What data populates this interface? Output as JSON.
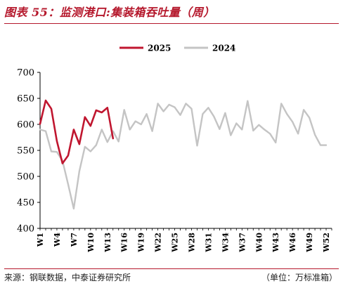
{
  "header": {
    "title": "图表 55：监测港口:集装箱吞吐量（周）"
  },
  "footer": {
    "source": "来源：钢联数据，中泰证券研究所",
    "unit": "（单位：万标准箱）"
  },
  "colors": {
    "accent": "#b5182c",
    "series_2025": "#c0162f",
    "series_2024": "#c4c4c4"
  },
  "chart_data": {
    "type": "line",
    "ylim": [
      400,
      700
    ],
    "yticks": [
      400,
      450,
      500,
      550,
      600,
      650,
      700
    ],
    "xlim": [
      1,
      53
    ],
    "xticks": [
      {
        "w": 1,
        "label": "W1"
      },
      {
        "w": 4,
        "label": "W4"
      },
      {
        "w": 7,
        "label": "W7"
      },
      {
        "w": 10,
        "label": "W10"
      },
      {
        "w": 13,
        "label": "W13"
      },
      {
        "w": 16,
        "label": "W16"
      },
      {
        "w": 19,
        "label": "W19"
      },
      {
        "w": 22,
        "label": "W22"
      },
      {
        "w": 25,
        "label": "W25"
      },
      {
        "w": 28,
        "label": "W28"
      },
      {
        "w": 31,
        "label": "W31"
      },
      {
        "w": 34,
        "label": "W34"
      },
      {
        "w": 37,
        "label": "W37"
      },
      {
        "w": 40,
        "label": "W40"
      },
      {
        "w": 43,
        "label": "W43"
      },
      {
        "w": 46,
        "label": "W46"
      },
      {
        "w": 49,
        "label": "W49"
      },
      {
        "w": 52,
        "label": "W52"
      }
    ],
    "legend_position": "top-center",
    "grid": false,
    "series": [
      {
        "name": "2025",
        "color": "#c0162f",
        "x": [
          1,
          2,
          3,
          4,
          5,
          6,
          7,
          8,
          9,
          10,
          11,
          12,
          13,
          14
        ],
        "values": [
          601,
          646,
          630,
          568,
          525,
          540,
          590,
          562,
          614,
          597,
          627,
          623,
          632,
          573
        ]
      },
      {
        "name": "2024",
        "color": "#c4c4c4",
        "x": [
          1,
          2,
          3,
          4,
          5,
          6,
          7,
          8,
          9,
          10,
          11,
          12,
          13,
          14,
          15,
          16,
          17,
          18,
          19,
          20,
          21,
          22,
          23,
          24,
          25,
          26,
          27,
          28,
          29,
          30,
          31,
          32,
          33,
          34,
          35,
          36,
          37,
          38,
          39,
          40,
          41,
          42,
          43,
          44,
          45,
          46,
          47,
          48,
          49,
          50,
          51,
          52
        ],
        "values": [
          590,
          587,
          548,
          547,
          530,
          485,
          438,
          510,
          557,
          548,
          560,
          590,
          566,
          587,
          567,
          628,
          590,
          606,
          600,
          620,
          587,
          640,
          625,
          638,
          633,
          618,
          640,
          630,
          559,
          620,
          632,
          615,
          591,
          622,
          579,
          602,
          590,
          645,
          588,
          599,
          590,
          582,
          565,
          640,
          620,
          605,
          582,
          628,
          613,
          580,
          560,
          560
        ]
      }
    ]
  }
}
